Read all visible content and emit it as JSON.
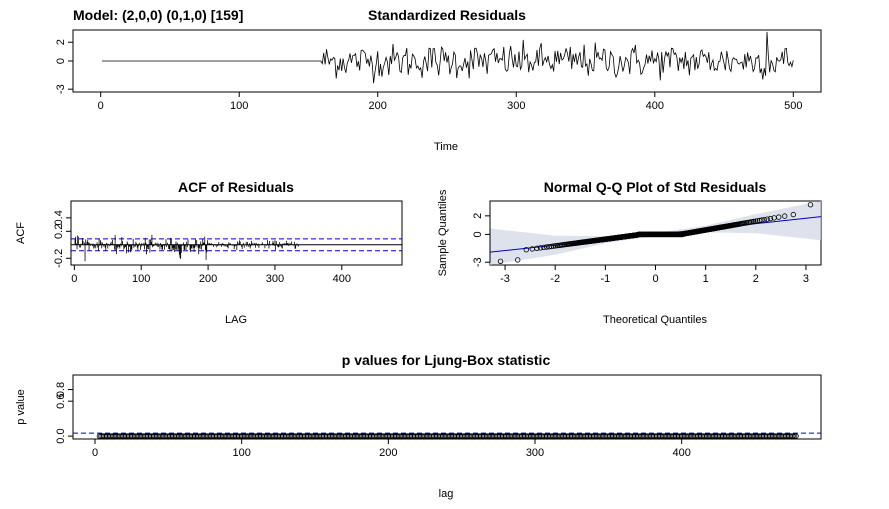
{
  "chart_data": [
    {
      "type": "line",
      "id": "residuals",
      "model_label": "Model: (2,0,0) (0,1,0) [159]",
      "title": "Standardized Residuals",
      "xlabel": "Time",
      "ylabel": "",
      "xlim": [
        -20,
        520
      ],
      "ylim": [
        -3.3,
        3.3
      ],
      "x_ticks": [
        0,
        100,
        200,
        300,
        400,
        500
      ],
      "y_ticks": [
        -3,
        0,
        2
      ],
      "series": [
        {
          "flat_segment": {
            "x_start": 1,
            "x_end": 159,
            "y": 0
          },
          "noisy_segment": {
            "x_start": 160,
            "x_end": 500,
            "sd": 0.9,
            "max_spike": {
              "x": 481,
              "y": 3.1
            }
          }
        }
      ]
    },
    {
      "type": "bar",
      "id": "acf",
      "title": "ACF of Residuals",
      "xlabel": "LAG",
      "ylabel": "ACF",
      "xlim": [
        -5,
        490
      ],
      "ylim": [
        -0.3,
        0.65
      ],
      "x_ticks": [
        0,
        100,
        200,
        300,
        400
      ],
      "y_ticks": [
        -0.2,
        0.2,
        0.4
      ],
      "max_lag": 335,
      "confidence_bounds": [
        0.088,
        -0.088
      ],
      "approx_values": [
        {
          "lag": 1,
          "acf": 0.08
        },
        {
          "lag": 2,
          "acf": 0.12
        },
        {
          "lag": 3,
          "acf": 0.02
        },
        {
          "lag": 5,
          "acf": 0.14
        },
        {
          "lag": 8,
          "acf": -0.04
        },
        {
          "lag": 12,
          "acf": 0.1
        },
        {
          "lag": 20,
          "acf": 0.07
        },
        {
          "lag": 40,
          "acf": 0.04
        },
        {
          "lag": 60,
          "acf": -0.07
        },
        {
          "lag": 62,
          "acf": -0.09
        },
        {
          "lag": 159,
          "acf": -0.21
        },
        {
          "lag": 160,
          "acf": -0.12
        }
      ]
    },
    {
      "type": "scatter",
      "id": "qq",
      "title": "Normal Q-Q Plot of Std Residuals",
      "xlabel": "Theoretical Quantiles",
      "ylabel": "Sample Quantiles",
      "xlim": [
        -3.3,
        3.3
      ],
      "ylim": [
        -3.3,
        3.6
      ],
      "x_ticks": [
        -3,
        -2,
        -1,
        0,
        1,
        2,
        3
      ],
      "y_ticks": [
        -3,
        0,
        2
      ],
      "reference_line": {
        "intercept": 0,
        "slope": 0.58
      },
      "flat_run": {
        "x_from": -0.35,
        "x_to": 0.55,
        "y": 0
      },
      "n_points": 500
    },
    {
      "type": "scatter",
      "id": "ljung",
      "title": "p values for Ljung-Box statistic",
      "xlabel": "lag",
      "ylabel": "p value",
      "xlim": [
        -15,
        495
      ],
      "ylim": [
        -0.05,
        1.05
      ],
      "x_ticks": [
        0,
        100,
        200,
        300,
        400
      ],
      "y_ticks": [
        0.0,
        0.6,
        0.8
      ],
      "significance_line": 0.05,
      "lag_range": [
        3,
        478
      ],
      "p_value": 0.0
    }
  ]
}
